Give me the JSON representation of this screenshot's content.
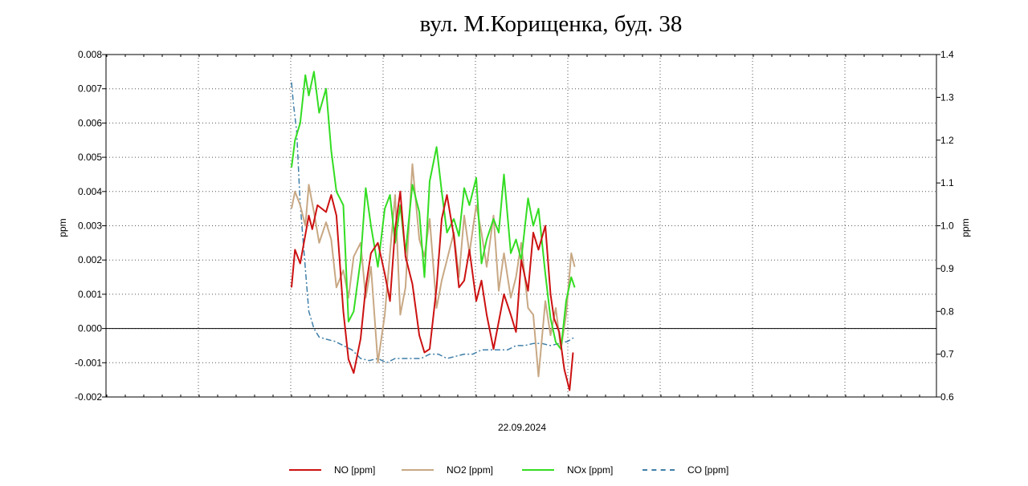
{
  "chart_data": {
    "type": "line",
    "title": "вул. М.Корищенка, буд. 38",
    "xlabel": "22.09.2024",
    "ylabel": "ppm",
    "ylabel_right": "ppm",
    "ylim": [
      -0.002,
      0.008
    ],
    "ylim_right": [
      0.6,
      1.4
    ],
    "yticks": [
      "-0.002",
      "-0.001",
      "0.000",
      "0.001",
      "0.002",
      "0.003",
      "0.004",
      "0.005",
      "0.006",
      "0.007",
      "0.008"
    ],
    "yticks_right": [
      "0.6",
      "0.7",
      "0.8",
      "0.9",
      "1.0",
      "1.1",
      "1.2",
      "1.3",
      "1.4"
    ],
    "grid": true,
    "legend": "bottom",
    "series": [
      {
        "name": "NO [ppm]",
        "axis": "left",
        "color": "#cc1111",
        "x": [
          0.0,
          0.2,
          0.5,
          1.0,
          1.2,
          1.5,
          2.0,
          2.3,
          2.6,
          3.0,
          3.3,
          3.6,
          4.0,
          4.3,
          4.6,
          5.0,
          5.4,
          5.7,
          6.0,
          6.3,
          6.6,
          7.0,
          7.4,
          7.7,
          8.0,
          8.4,
          8.7,
          9.0,
          9.4,
          9.7,
          10.0,
          10.3,
          10.7,
          11.0,
          11.3,
          11.7,
          12.0,
          12.3,
          12.7,
          13.0,
          13.3,
          13.7,
          14.0,
          14.3,
          14.7,
          15.0,
          15.2,
          15.5,
          15.8,
          16.1,
          16.3
        ],
        "y": [
          0.0012,
          0.0023,
          0.0019,
          0.0033,
          0.0029,
          0.0036,
          0.0034,
          0.0039,
          0.0033,
          0.0005,
          -0.0009,
          -0.0013,
          -0.0003,
          0.0012,
          0.0022,
          0.0025,
          0.0016,
          0.0008,
          0.0029,
          0.004,
          0.0021,
          0.0013,
          -0.0002,
          -0.0007,
          -0.0006,
          0.0012,
          0.0032,
          0.0039,
          0.0027,
          0.0012,
          0.0014,
          0.0023,
          0.0008,
          0.0014,
          0.0004,
          -0.0006,
          0.0002,
          0.001,
          0.0004,
          -0.0001,
          0.002,
          0.0011,
          0.0028,
          0.0023,
          0.003,
          0.001,
          0.0003,
          -0.0001,
          -0.0012,
          -0.0018,
          -0.0007
        ]
      },
      {
        "name": "NO2 [ppm]",
        "axis": "left",
        "color": "#c8a884",
        "x": [
          0.0,
          0.2,
          0.5,
          0.8,
          1.0,
          1.3,
          1.6,
          2.0,
          2.3,
          2.6,
          3.0,
          3.3,
          3.6,
          4.0,
          4.3,
          4.6,
          5.0,
          5.4,
          5.7,
          6.0,
          6.3,
          6.6,
          7.0,
          7.4,
          7.7,
          8.0,
          8.4,
          8.7,
          9.0,
          9.4,
          9.7,
          10.0,
          10.3,
          10.7,
          11.0,
          11.3,
          11.7,
          12.0,
          12.3,
          12.7,
          13.0,
          13.3,
          13.7,
          14.0,
          14.3,
          14.7,
          15.0,
          15.3,
          15.6,
          15.9,
          16.2,
          16.4
        ],
        "y": [
          0.0035,
          0.004,
          0.0036,
          0.003,
          0.0042,
          0.0034,
          0.0025,
          0.0031,
          0.0026,
          0.0012,
          0.0017,
          0.0009,
          0.0021,
          0.0025,
          0.0009,
          0.0018,
          -0.001,
          0.0004,
          0.0022,
          0.0039,
          0.0004,
          0.0012,
          0.0048,
          0.0026,
          0.0021,
          0.0032,
          0.0006,
          0.0014,
          0.002,
          0.0028,
          0.0015,
          0.0033,
          0.0022,
          0.0036,
          0.0028,
          0.0018,
          0.0033,
          0.0011,
          0.0022,
          0.0009,
          0.0015,
          0.0025,
          0.0006,
          0.0004,
          -0.0014,
          0.0008,
          -0.0002,
          0.0006,
          -0.0006,
          0.0004,
          0.0022,
          0.0018
        ]
      },
      {
        "name": "NOx [ppm]",
        "axis": "left",
        "color": "#33dd22",
        "x": [
          0.0,
          0.2,
          0.5,
          0.8,
          1.0,
          1.3,
          1.6,
          2.0,
          2.3,
          2.6,
          3.0,
          3.3,
          3.6,
          4.0,
          4.3,
          4.6,
          5.0,
          5.4,
          5.7,
          6.0,
          6.3,
          6.6,
          7.0,
          7.4,
          7.7,
          8.0,
          8.4,
          8.7,
          9.0,
          9.4,
          9.7,
          10.0,
          10.3,
          10.7,
          11.0,
          11.3,
          11.7,
          12.0,
          12.3,
          12.7,
          13.0,
          13.3,
          13.7,
          14.0,
          14.3,
          14.7,
          15.0,
          15.3,
          15.6,
          15.9,
          16.2,
          16.4
        ],
        "y": [
          0.0047,
          0.0055,
          0.006,
          0.0074,
          0.0068,
          0.0075,
          0.0063,
          0.007,
          0.0052,
          0.004,
          0.0036,
          0.0002,
          0.0005,
          0.002,
          0.0041,
          0.003,
          0.0018,
          0.0035,
          0.0039,
          0.0025,
          0.0036,
          0.0022,
          0.0042,
          0.0034,
          0.0015,
          0.0043,
          0.0053,
          0.004,
          0.0028,
          0.0032,
          0.0027,
          0.0041,
          0.0036,
          0.0044,
          0.0019,
          0.0026,
          0.0032,
          0.0028,
          0.0045,
          0.0022,
          0.0026,
          0.002,
          0.0038,
          0.003,
          0.0035,
          0.0016,
          0.0003,
          -0.0004,
          -0.0006,
          0.0008,
          0.0015,
          0.0012
        ]
      },
      {
        "name": "CO [ppm]",
        "axis": "right",
        "color": "#3f7fa8",
        "dash": "dashdot",
        "x": [
          0.0,
          0.1,
          0.3,
          0.5,
          0.8,
          1.0,
          1.3,
          1.6,
          2.0,
          2.5,
          3.0,
          3.5,
          4.0,
          4.5,
          5.0,
          5.5,
          6.0,
          6.5,
          7.0,
          7.5,
          8.0,
          8.5,
          9.0,
          9.5,
          10.0,
          10.5,
          11.0,
          11.5,
          12.0,
          12.5,
          13.0,
          13.5,
          14.0,
          14.5,
          15.0,
          15.5,
          16.0,
          16.4
        ],
        "y": [
          1.335,
          1.29,
          1.22,
          1.05,
          0.9,
          0.8,
          0.76,
          0.74,
          0.735,
          0.73,
          0.72,
          0.71,
          0.69,
          0.685,
          0.69,
          0.68,
          0.69,
          0.69,
          0.69,
          0.69,
          0.7,
          0.7,
          0.69,
          0.695,
          0.7,
          0.7,
          0.71,
          0.71,
          0.71,
          0.71,
          0.72,
          0.72,
          0.725,
          0.725,
          0.72,
          0.725,
          0.73,
          0.74
        ]
      }
    ],
    "xlim": [
      0,
      24
    ]
  }
}
